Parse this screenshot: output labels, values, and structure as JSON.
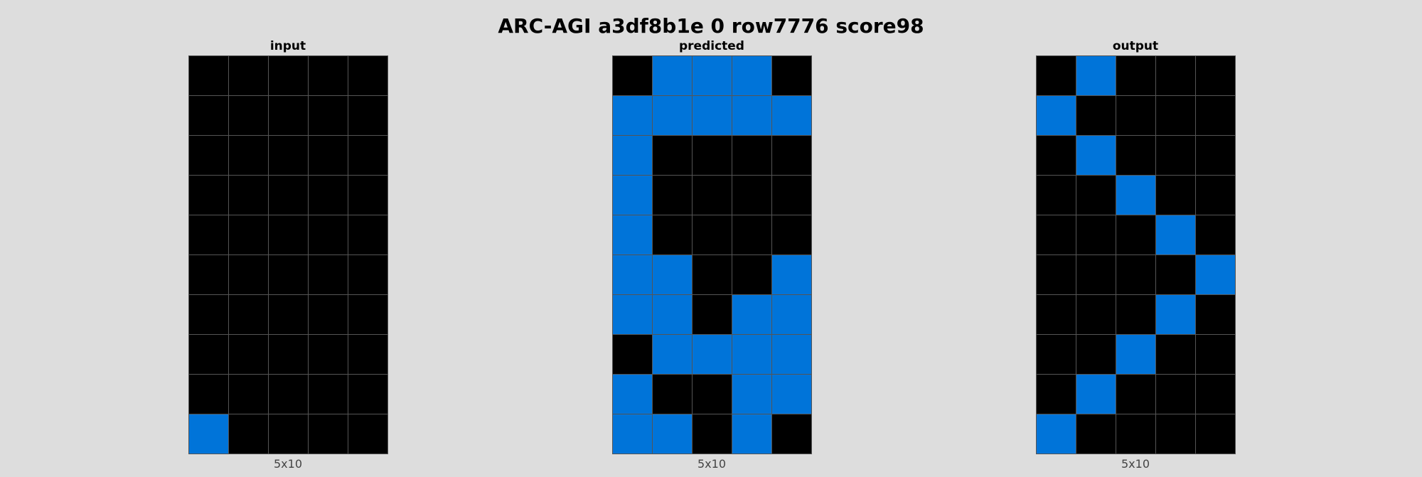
{
  "title": "ARC-AGI a3df8b1e 0 row7776 score98",
  "palette": {
    "0": "#000000",
    "1": "#0074D9"
  },
  "panels": [
    {
      "label": "input",
      "dims": "5x10",
      "grid": [
        [
          0,
          0,
          0,
          0,
          0
        ],
        [
          0,
          0,
          0,
          0,
          0
        ],
        [
          0,
          0,
          0,
          0,
          0
        ],
        [
          0,
          0,
          0,
          0,
          0
        ],
        [
          0,
          0,
          0,
          0,
          0
        ],
        [
          0,
          0,
          0,
          0,
          0
        ],
        [
          0,
          0,
          0,
          0,
          0
        ],
        [
          0,
          0,
          0,
          0,
          0
        ],
        [
          0,
          0,
          0,
          0,
          0
        ],
        [
          1,
          0,
          0,
          0,
          0
        ]
      ]
    },
    {
      "label": "predicted",
      "dims": "5x10",
      "grid": [
        [
          0,
          1,
          1,
          1,
          0
        ],
        [
          1,
          1,
          1,
          1,
          1
        ],
        [
          1,
          0,
          0,
          0,
          0
        ],
        [
          1,
          0,
          0,
          0,
          0
        ],
        [
          1,
          0,
          0,
          0,
          0
        ],
        [
          1,
          1,
          0,
          0,
          1
        ],
        [
          1,
          1,
          0,
          1,
          1
        ],
        [
          0,
          1,
          1,
          1,
          1
        ],
        [
          1,
          0,
          0,
          1,
          1
        ],
        [
          1,
          1,
          0,
          1,
          0
        ]
      ]
    },
    {
      "label": "output",
      "dims": "5x10",
      "grid": [
        [
          0,
          1,
          0,
          0,
          0
        ],
        [
          1,
          0,
          0,
          0,
          0
        ],
        [
          0,
          1,
          0,
          0,
          0
        ],
        [
          0,
          0,
          1,
          0,
          0
        ],
        [
          0,
          0,
          0,
          1,
          0
        ],
        [
          0,
          0,
          0,
          0,
          1
        ],
        [
          0,
          0,
          0,
          1,
          0
        ],
        [
          0,
          0,
          1,
          0,
          0
        ],
        [
          0,
          1,
          0,
          0,
          0
        ],
        [
          1,
          0,
          0,
          0,
          0
        ]
      ]
    }
  ]
}
